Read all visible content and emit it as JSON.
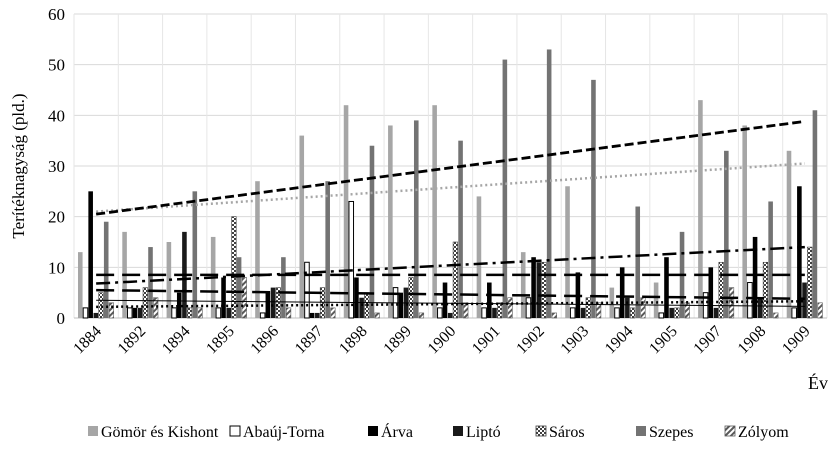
{
  "chart_data": {
    "type": "bar",
    "ylabel": "Terítéknagyság (pld.)",
    "xlabel": "Év",
    "ylim": [
      0,
      60
    ],
    "yticks": [
      0,
      10,
      20,
      30,
      40,
      50,
      60
    ],
    "grid": "horizontal",
    "legend_position": "bottom",
    "categories": [
      "1884",
      "1892",
      "1894",
      "1895",
      "1896",
      "1897",
      "1898",
      "1899",
      "1900",
      "1901",
      "1902",
      "1903",
      "1904",
      "1905",
      "1907",
      "1908",
      "1909"
    ],
    "series": [
      {
        "name": "Gömör és Kishont",
        "pattern": "solid",
        "color": "#a6a6a6",
        "values": [
          13,
          17,
          15,
          16,
          27,
          36,
          42,
          38,
          42,
          24,
          13,
          26,
          6,
          7,
          43,
          38,
          33
        ]
      },
      {
        "name": "Abaúj-Torna",
        "pattern": "outline",
        "color": "#000000",
        "values": [
          2,
          2,
          2,
          2,
          1,
          11,
          23,
          6,
          2,
          2,
          4,
          2,
          2,
          1,
          5,
          7,
          2
        ]
      },
      {
        "name": "Árva",
        "pattern": "solid",
        "color": "#000000",
        "values": [
          25,
          2,
          5,
          8,
          5,
          1,
          8,
          5,
          7,
          7,
          12,
          9,
          10,
          12,
          10,
          16,
          26
        ]
      },
      {
        "name": "Liptó",
        "pattern": "solid",
        "color": "#1a1a1a",
        "values": [
          1,
          2,
          17,
          2,
          6,
          1,
          4,
          6,
          1,
          2,
          11,
          2,
          4,
          2,
          2,
          4,
          7
        ]
      },
      {
        "name": "Sáros",
        "pattern": "checker",
        "color": "#404040",
        "values": [
          5,
          6,
          2,
          20,
          6,
          6,
          5,
          8,
          15,
          3,
          11,
          4,
          2,
          2,
          11,
          11,
          14
        ]
      },
      {
        "name": "Szepes",
        "pattern": "solid",
        "color": "#737373",
        "values": [
          19,
          14,
          25,
          12,
          12,
          27,
          34,
          39,
          35,
          51,
          53,
          47,
          22,
          17,
          33,
          23,
          41
        ]
      },
      {
        "name": "Zólyom",
        "pattern": "hatch",
        "color": "#595959",
        "values": [
          3,
          4,
          2,
          8,
          2,
          2,
          1,
          1,
          3,
          4,
          1,
          3,
          4,
          3,
          6,
          1,
          3
        ]
      }
    ],
    "trendlines": [
      {
        "series": "Gömör és Kishont",
        "style": "dotted",
        "color": "#a6a6a6",
        "from": 21,
        "to": 30.5
      },
      {
        "series": "Abaúj-Torna",
        "style": "solid-thin",
        "color": "#000000",
        "from": 3.5,
        "to": 2.3
      },
      {
        "series": "Árva",
        "style": "long-dash",
        "color": "#000000",
        "from": 8.5,
        "to": 8.5
      },
      {
        "series": "Liptó",
        "style": "long-dash",
        "color": "#000000",
        "from": 5.5,
        "to": 3.8
      },
      {
        "series": "Sáros",
        "style": "dash-dot",
        "color": "#000000",
        "from": 6.8,
        "to": 14
      },
      {
        "series": "Szepes",
        "style": "dashed",
        "color": "#000000",
        "from": 20.5,
        "to": 38.8
      },
      {
        "series": "Zólyom",
        "style": "dotted",
        "color": "#000000",
        "from": 2.2,
        "to": 3.3
      }
    ]
  }
}
